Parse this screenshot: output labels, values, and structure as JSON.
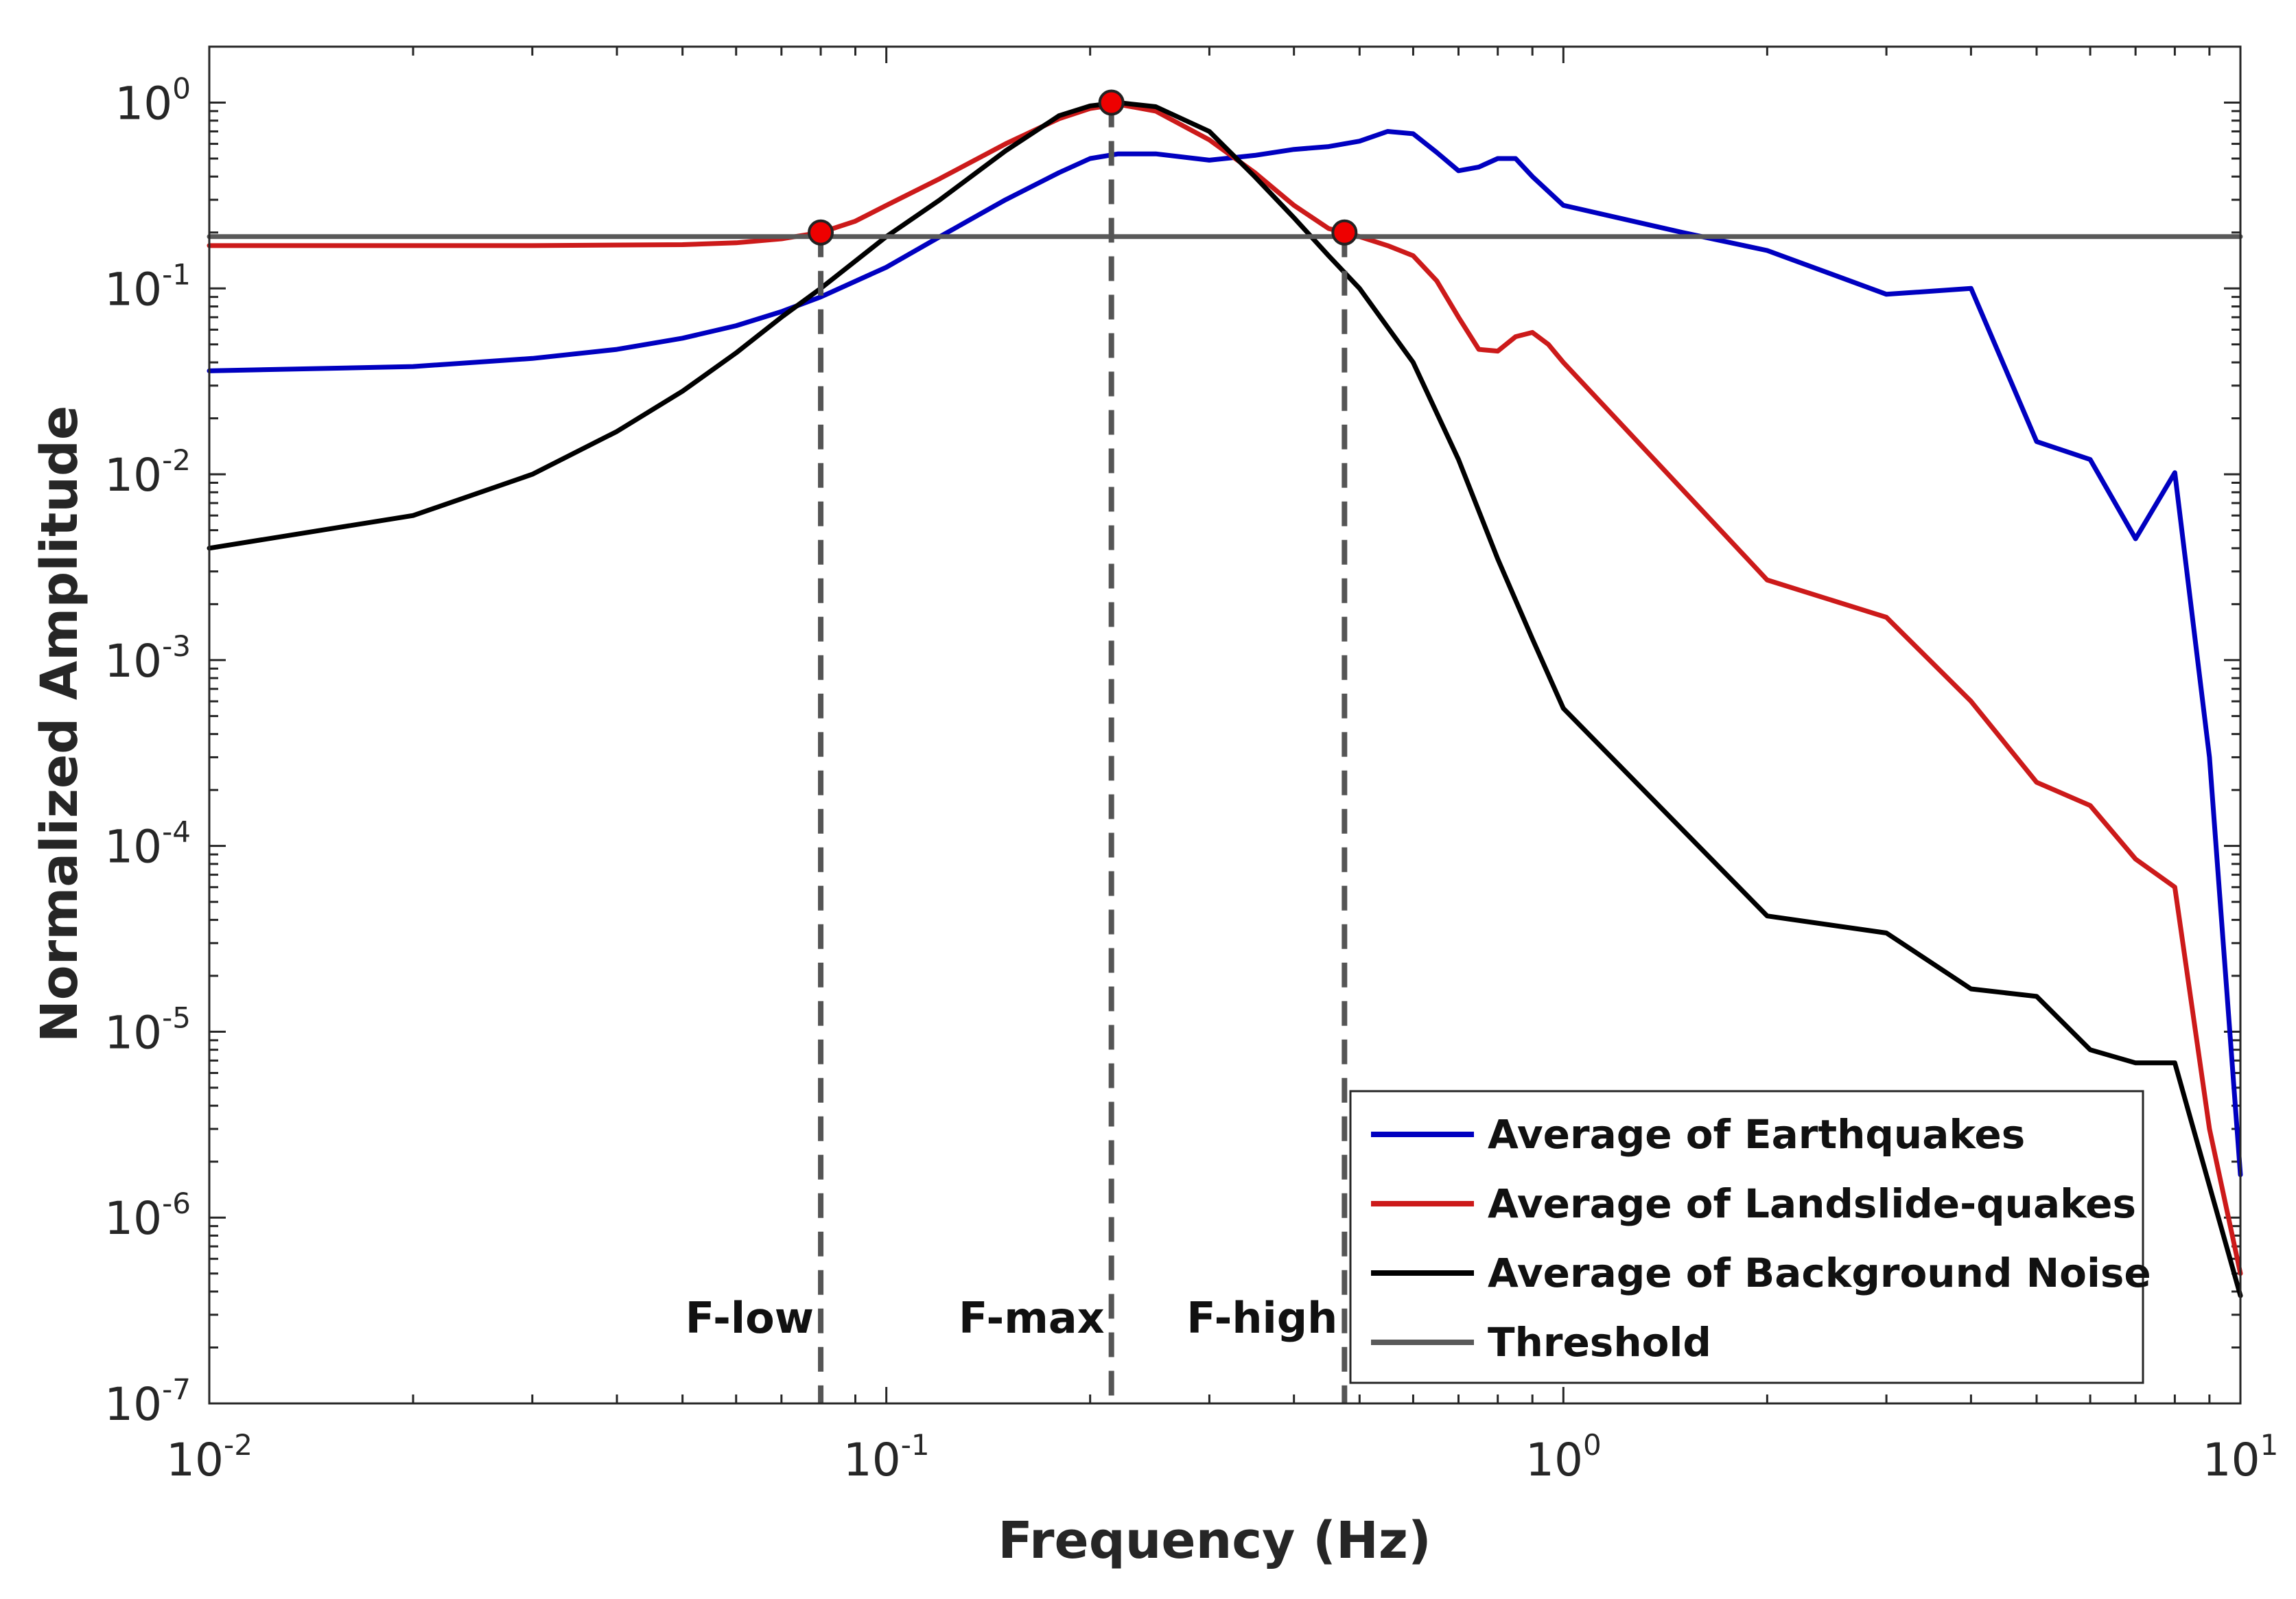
{
  "chart_data": {
    "type": "line",
    "xscale": "log",
    "yscale": "log",
    "xlim": [
      0.01,
      10
    ],
    "ylim": [
      1e-07,
      2
    ],
    "xlabel": "Frequency (Hz)",
    "ylabel": "Normalized Amplitude",
    "x_ticks": [
      {
        "value": 0.01,
        "base": "10",
        "exp": "-2"
      },
      {
        "value": 0.1,
        "base": "10",
        "exp": "-1"
      },
      {
        "value": 1,
        "base": "10",
        "exp": "0"
      },
      {
        "value": 10,
        "base": "10",
        "exp": "1"
      }
    ],
    "y_ticks": [
      {
        "value": 1,
        "base": "10",
        "exp": "0"
      },
      {
        "value": 0.1,
        "base": "10",
        "exp": "-1"
      },
      {
        "value": 0.01,
        "base": "10",
        "exp": "-2"
      },
      {
        "value": 0.001,
        "base": "10",
        "exp": "-3"
      },
      {
        "value": 0.0001,
        "base": "10",
        "exp": "-4"
      },
      {
        "value": 1e-05,
        "base": "10",
        "exp": "-5"
      },
      {
        "value": 1e-06,
        "base": "10",
        "exp": "-6"
      },
      {
        "value": 1e-07,
        "base": "10",
        "exp": "-7"
      }
    ],
    "series": [
      {
        "name": "Average of Earthquakes",
        "color": "#0000c0",
        "points": [
          [
            0.01,
            0.036
          ],
          [
            0.02,
            0.038
          ],
          [
            0.03,
            0.042
          ],
          [
            0.04,
            0.047
          ],
          [
            0.05,
            0.054
          ],
          [
            0.06,
            0.063
          ],
          [
            0.07,
            0.075
          ],
          [
            0.08,
            0.09
          ],
          [
            0.1,
            0.13
          ],
          [
            0.12,
            0.19
          ],
          [
            0.15,
            0.3
          ],
          [
            0.18,
            0.42
          ],
          [
            0.2,
            0.5
          ],
          [
            0.22,
            0.53
          ],
          [
            0.25,
            0.53
          ],
          [
            0.3,
            0.49
          ],
          [
            0.35,
            0.52
          ],
          [
            0.4,
            0.56
          ],
          [
            0.45,
            0.58
          ],
          [
            0.5,
            0.62
          ],
          [
            0.55,
            0.7
          ],
          [
            0.6,
            0.68
          ],
          [
            0.65,
            0.54
          ],
          [
            0.7,
            0.43
          ],
          [
            0.75,
            0.45
          ],
          [
            0.8,
            0.5
          ],
          [
            0.85,
            0.5
          ],
          [
            0.9,
            0.4
          ],
          [
            1.0,
            0.28
          ],
          [
            1.5,
            0.2
          ],
          [
            2,
            0.16
          ],
          [
            3,
            0.093
          ],
          [
            4,
            0.1
          ],
          [
            5,
            0.015
          ],
          [
            6,
            0.012
          ],
          [
            7,
            0.0045
          ],
          [
            8,
            0.0102
          ],
          [
            9,
            0.0003
          ],
          [
            10,
            1.7e-06
          ]
        ]
      },
      {
        "name": "Average of Landslide-quakes",
        "color": "#cc1a1a",
        "points": [
          [
            0.01,
            0.17
          ],
          [
            0.03,
            0.17
          ],
          [
            0.05,
            0.172
          ],
          [
            0.06,
            0.176
          ],
          [
            0.07,
            0.185
          ],
          [
            0.08,
            0.2
          ],
          [
            0.09,
            0.23
          ],
          [
            0.1,
            0.28
          ],
          [
            0.12,
            0.39
          ],
          [
            0.15,
            0.6
          ],
          [
            0.18,
            0.82
          ],
          [
            0.2,
            0.93
          ],
          [
            0.22,
            0.98
          ],
          [
            0.25,
            0.9
          ],
          [
            0.3,
            0.63
          ],
          [
            0.35,
            0.42
          ],
          [
            0.4,
            0.28
          ],
          [
            0.45,
            0.21
          ],
          [
            0.5,
            0.19
          ],
          [
            0.55,
            0.17
          ],
          [
            0.6,
            0.15
          ],
          [
            0.65,
            0.11
          ],
          [
            0.7,
            0.07
          ],
          [
            0.75,
            0.047
          ],
          [
            0.8,
            0.046
          ],
          [
            0.85,
            0.055
          ],
          [
            0.9,
            0.058
          ],
          [
            0.95,
            0.05
          ],
          [
            1.0,
            0.04
          ],
          [
            2,
            0.0027
          ],
          [
            3,
            0.0017
          ],
          [
            4,
            0.0006
          ],
          [
            5,
            0.00022
          ],
          [
            6,
            0.000165
          ],
          [
            7,
            8.5e-05
          ],
          [
            8,
            6e-05
          ],
          [
            9,
            3e-06
          ],
          [
            10,
            5e-07
          ]
        ]
      },
      {
        "name": "Average of Background Noise",
        "color": "#000000",
        "points": [
          [
            0.01,
            0.004
          ],
          [
            0.02,
            0.006
          ],
          [
            0.03,
            0.01
          ],
          [
            0.04,
            0.017
          ],
          [
            0.05,
            0.028
          ],
          [
            0.06,
            0.045
          ],
          [
            0.07,
            0.07
          ],
          [
            0.08,
            0.1
          ],
          [
            0.1,
            0.19
          ],
          [
            0.12,
            0.3
          ],
          [
            0.15,
            0.55
          ],
          [
            0.18,
            0.85
          ],
          [
            0.2,
            0.96
          ],
          [
            0.22,
            1.0
          ],
          [
            0.25,
            0.95
          ],
          [
            0.3,
            0.7
          ],
          [
            0.35,
            0.4
          ],
          [
            0.4,
            0.24
          ],
          [
            0.45,
            0.15
          ],
          [
            0.5,
            0.1
          ],
          [
            0.6,
            0.04
          ],
          [
            0.7,
            0.012
          ],
          [
            0.8,
            0.0035
          ],
          [
            0.9,
            0.0013
          ],
          [
            1,
            0.00055
          ],
          [
            2,
            4.2e-05
          ],
          [
            3,
            3.4e-05
          ],
          [
            4,
            1.7e-05
          ],
          [
            5,
            1.55e-05
          ],
          [
            6,
            8e-06
          ],
          [
            7,
            6.8e-06
          ],
          [
            8,
            6.8e-06
          ],
          [
            10,
            3.8e-07
          ]
        ]
      },
      {
        "name": "Threshold",
        "color": "#595959",
        "points": [
          [
            0.01,
            0.19
          ],
          [
            10,
            0.19
          ]
        ]
      }
    ],
    "vertical_markers": [
      {
        "label": "F-low",
        "x": 0.08,
        "y": 0.2
      },
      {
        "label": "F-max",
        "x": 0.215,
        "y": 1.0
      },
      {
        "label": "F-high",
        "x": 0.475,
        "y": 0.2
      }
    ],
    "legend_position": "bottom-right"
  }
}
